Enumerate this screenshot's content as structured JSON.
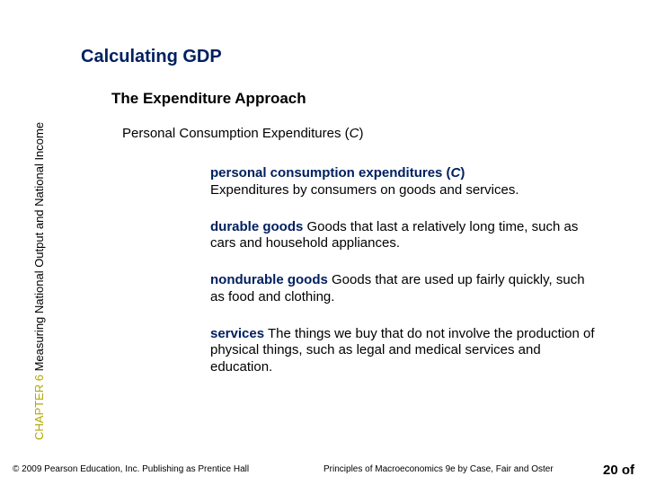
{
  "colors": {
    "title": "#002060",
    "term": "#002060",
    "chapter_accent": "#b2a800",
    "text": "#000000",
    "background": "#ffffff"
  },
  "fonts": {
    "title_size": 20,
    "subtitle1_size": 17,
    "subtitle2_size": 15,
    "body_size": 15,
    "footer_size": 10,
    "page_size": 15
  },
  "title": "Calculating GDP",
  "subtitle1": "The Expenditure Approach",
  "subtitle2_prefix": "Personal Consumption Expenditures (",
  "subtitle2_ital": "C",
  "subtitle2_suffix": ")",
  "vertical_label": {
    "chapter": "CHAPTER 6",
    "rest": " Measuring National Output and National Income"
  },
  "definitions": [
    {
      "term": "personal consumption expenditures (",
      "term_ital": "C",
      "term_suffix": ")",
      "body": "Expenditures by consumers on goods and services."
    },
    {
      "term": "durable goods",
      "term_ital": "",
      "term_suffix": "",
      "body": "  Goods that last a relatively long time, such as cars and household appliances."
    },
    {
      "term": "nondurable goods",
      "term_ital": "",
      "term_suffix": "",
      "body": "  Goods that are used up fairly quickly, such as food and clothing."
    },
    {
      "term": "services",
      "term_ital": "",
      "term_suffix": "",
      "body": "  The things we buy that do not involve the production of physical things, such as legal and medical services and education."
    }
  ],
  "footer": {
    "left": "© 2009 Pearson Education, Inc. Publishing as Prentice Hall",
    "mid": "Principles of Macroeconomics 9e by Case, Fair and Oster"
  },
  "page": {
    "num": "20",
    "of": " of"
  }
}
